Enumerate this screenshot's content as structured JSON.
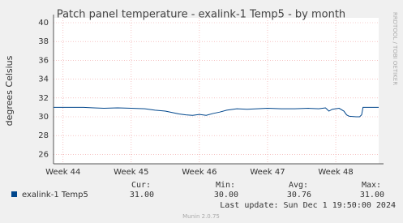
{
  "chart_data": {
    "type": "line",
    "title": "Patch panel temperature - exalink-1 Temp5 - by month",
    "y_label": "degrees Celsius",
    "side_label": "RRDTOOL / TOBI OETIKER",
    "xlim": [
      43.86,
      48.63
    ],
    "xticks": [
      {
        "value": 44,
        "label": "Week 44"
      },
      {
        "value": 45,
        "label": "Week 45"
      },
      {
        "value": 46,
        "label": "Week 46"
      },
      {
        "value": 47,
        "label": "Week 47"
      },
      {
        "value": 48,
        "label": "Week 48"
      }
    ],
    "ylim": [
      25,
      40
    ],
    "yticks": [
      26,
      28,
      30,
      32,
      34,
      36,
      38,
      40
    ],
    "grid": true,
    "x": [
      43.86,
      44.3,
      44.45,
      44.6,
      44.8,
      45.0,
      45.2,
      45.35,
      45.5,
      45.6,
      45.7,
      45.8,
      45.9,
      46.0,
      46.1,
      46.2,
      46.3,
      46.4,
      46.55,
      46.7,
      46.85,
      47.0,
      47.2,
      47.4,
      47.6,
      47.75,
      47.85,
      47.9,
      47.95,
      48.05,
      48.12,
      48.16,
      48.2,
      48.3,
      48.35,
      48.38,
      48.4,
      48.63
    ],
    "series": [
      {
        "name": "exalink-1 Temp5",
        "color": "#00468c",
        "values": [
          31.0,
          31.0,
          30.95,
          30.9,
          30.95,
          30.9,
          30.85,
          30.7,
          30.6,
          30.45,
          30.3,
          30.2,
          30.15,
          30.25,
          30.15,
          30.35,
          30.5,
          30.7,
          30.85,
          30.8,
          30.85,
          30.9,
          30.85,
          30.85,
          30.9,
          30.85,
          30.95,
          30.6,
          30.8,
          30.9,
          30.6,
          30.2,
          30.05,
          30.0,
          30.0,
          30.2,
          31.0,
          31.0
        ],
        "stats": [
          "31.00",
          "30.00",
          "30.76",
          "31.00"
        ]
      }
    ],
    "stats_headers": [
      "Cur:",
      "Min:",
      "Avg:",
      "Max:"
    ],
    "last_update": "Last update: Sun Dec  1 19:50:00 2024",
    "footer": "Munin 2.0.75"
  }
}
